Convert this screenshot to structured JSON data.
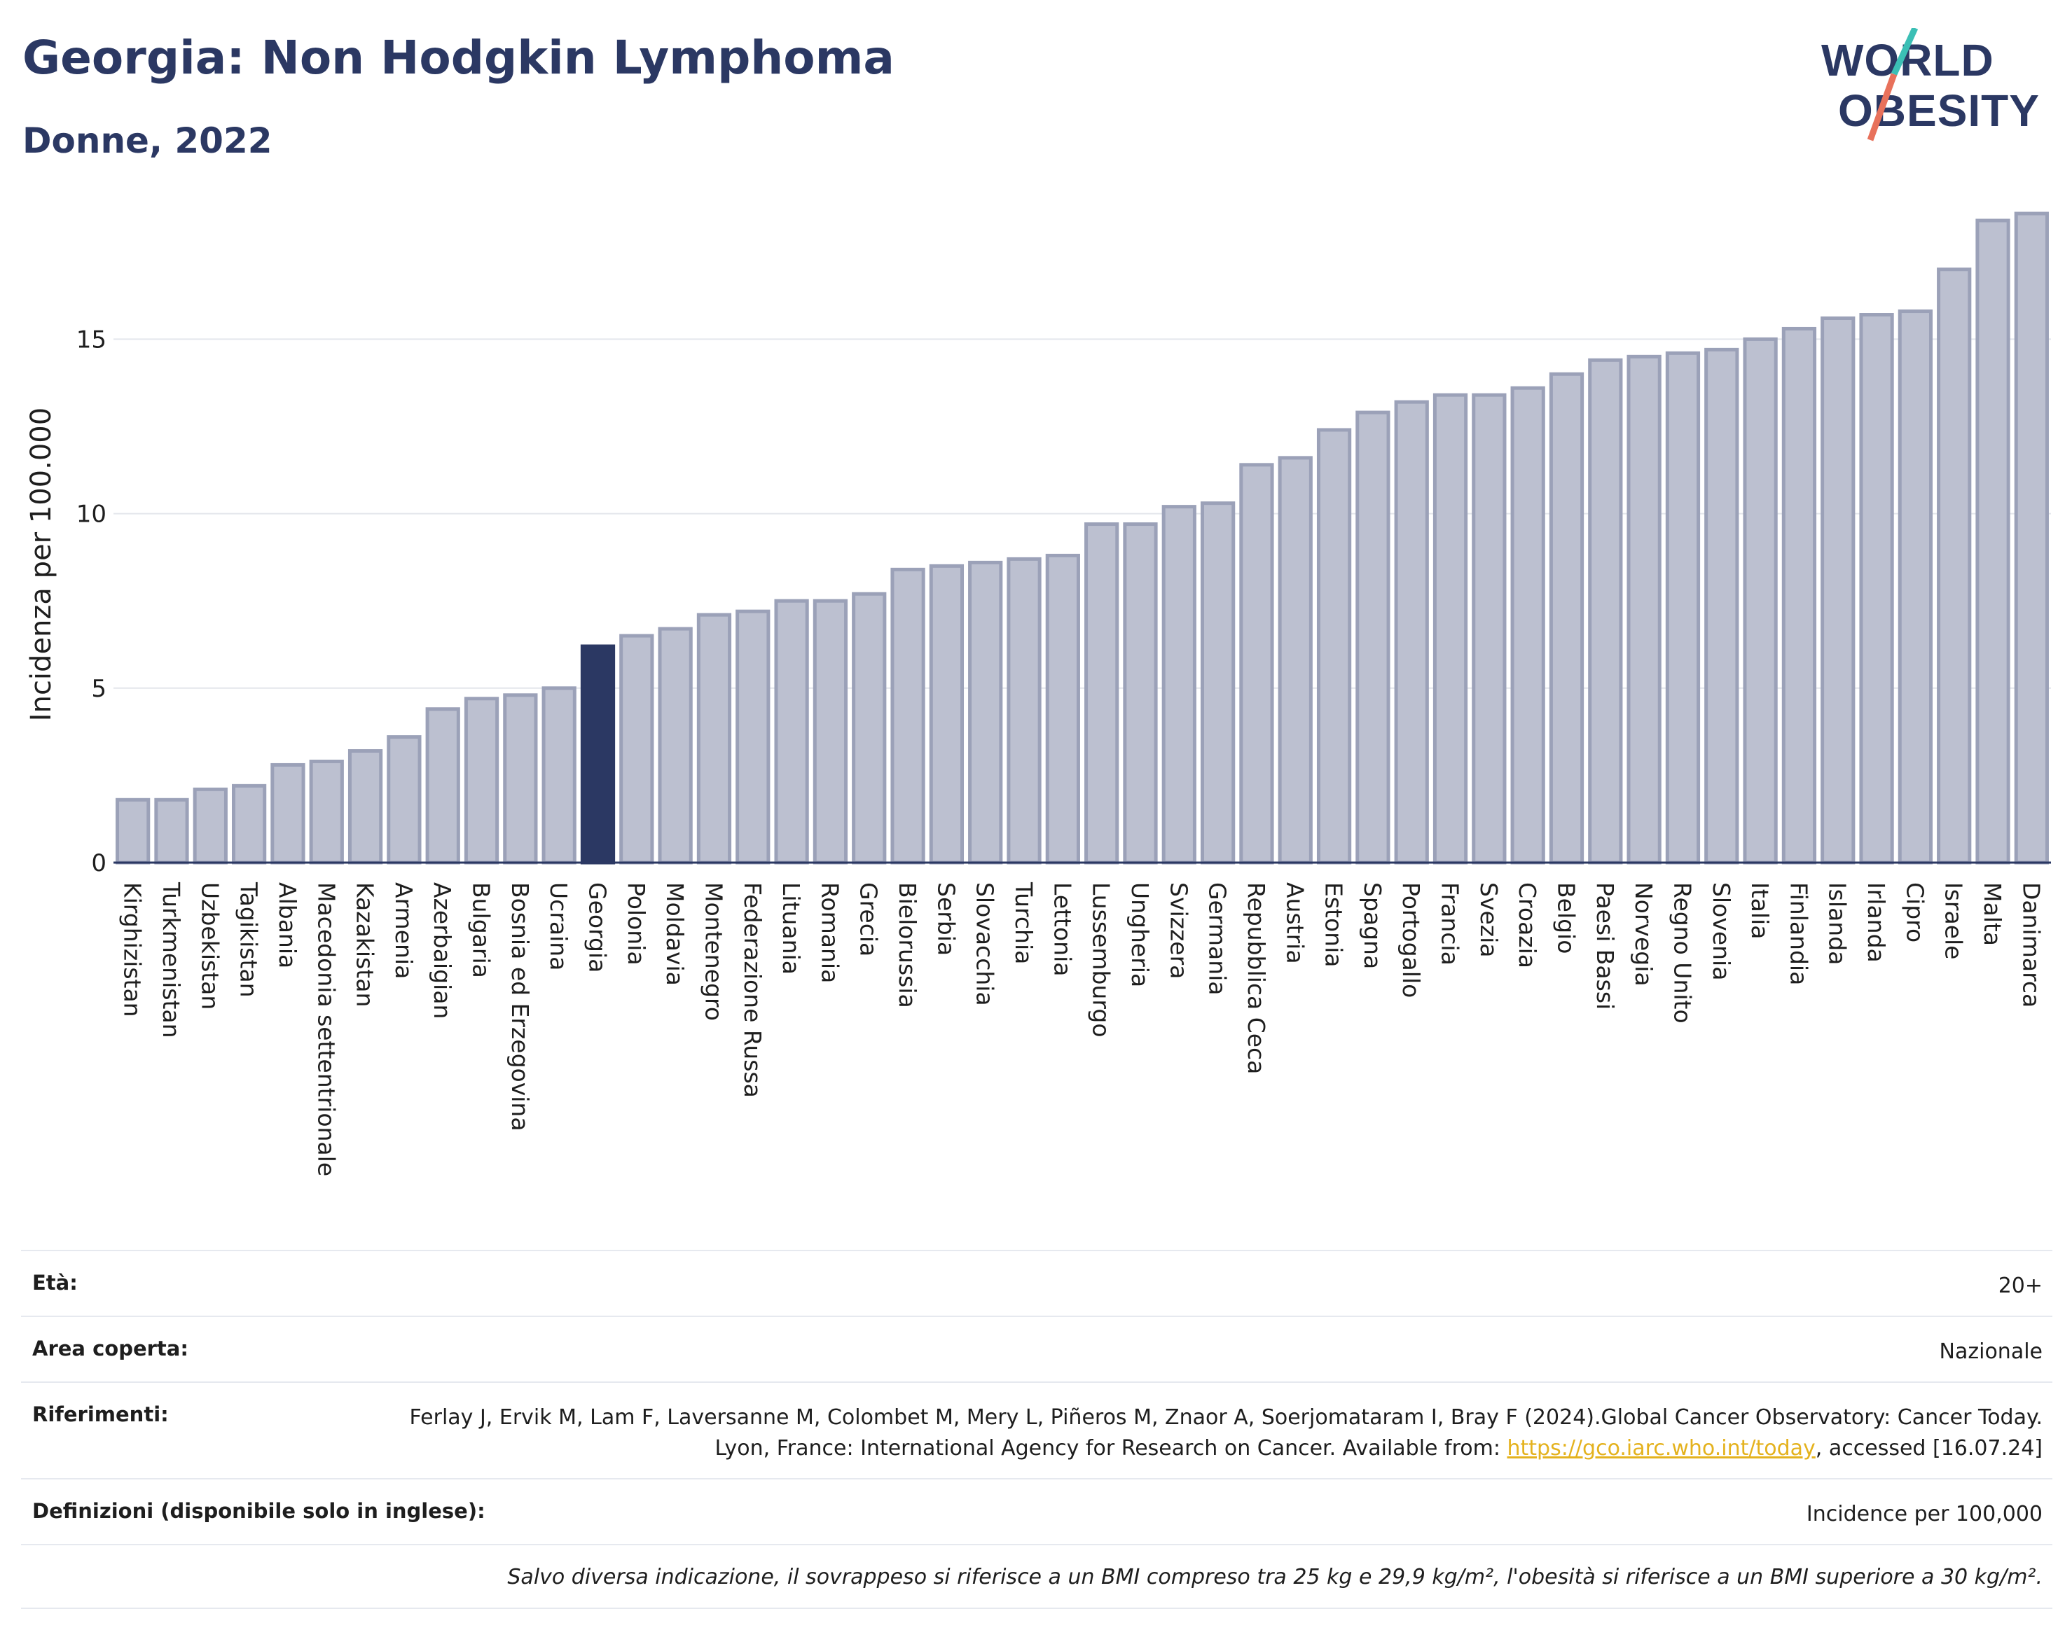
{
  "header": {
    "title": "Georgia: Non Hodgkin Lymphoma",
    "subtitle": "Donne, 2022"
  },
  "logo": {
    "line1": "WORLD",
    "line2": "OBESITY"
  },
  "colors": {
    "bar": "#bcc0d0",
    "bar_border": "#9ba1b8",
    "highlight": "#2b3863",
    "grid": "#e4e6ec",
    "axis": "#2b3863",
    "logo_text": "#2b3863",
    "logo_slash_teal": "#3bbfb5",
    "logo_slash_coral": "#e8715b"
  },
  "chart_data": {
    "type": "bar",
    "title": "Georgia: Non Hodgkin Lymphoma",
    "subtitle": "Donne, 2022",
    "ylabel": "Incidenza per 100.000",
    "xlabel": "",
    "ylim": [
      0,
      18.7
    ],
    "yticks": [
      0,
      5,
      10,
      15
    ],
    "grid": true,
    "highlight": "Georgia",
    "categories": [
      "Kirghizistan",
      "Turkmenistan",
      "Uzbekistan",
      "Tagikistan",
      "Albania",
      "Macedonia settentrionale",
      "Kazakistan",
      "Armenia",
      "Azerbaigian",
      "Bulgaria",
      "Bosnia ed Erzegovina",
      "Ucraina",
      "Georgia",
      "Polonia",
      "Moldavia",
      "Montenegro",
      "Federazione Russa",
      "Lituania",
      "Romania",
      "Grecia",
      "Bielorussia",
      "Serbia",
      "Slovacchia",
      "Turchia",
      "Lettonia",
      "Lussemburgo",
      "Ungheria",
      "Svizzera",
      "Germania",
      "Repubblica Ceca",
      "Austria",
      "Estonia",
      "Spagna",
      "Portogallo",
      "Francia",
      "Svezia",
      "Croazia",
      "Belgio",
      "Paesi Bassi",
      "Norvegia",
      "Regno Unito",
      "Slovenia",
      "Italia",
      "Finlandia",
      "Islanda",
      "Irlanda",
      "Cipro",
      "Israele",
      "Malta",
      "Danimarca"
    ],
    "values": [
      1.8,
      1.8,
      2.1,
      2.2,
      2.8,
      2.9,
      3.2,
      3.6,
      4.4,
      4.7,
      4.8,
      5.0,
      6.2,
      6.5,
      6.7,
      7.1,
      7.2,
      7.5,
      7.5,
      7.7,
      8.4,
      8.5,
      8.6,
      8.7,
      8.8,
      9.7,
      9.7,
      10.2,
      10.3,
      11.4,
      11.6,
      12.4,
      12.9,
      13.2,
      13.4,
      13.4,
      13.6,
      14.0,
      14.4,
      14.5,
      14.6,
      14.7,
      15.0,
      15.3,
      15.6,
      15.7,
      15.8,
      17.0,
      18.4,
      18.6
    ]
  },
  "meta": {
    "age_label": "Età:",
    "age_value": "20+",
    "area_label": "Area coperta:",
    "area_value": "Nazionale",
    "refs_label": "Riferimenti:",
    "refs_text": "Ferlay J, Ervik M, Lam F, Laversanne M, Colombet M, Mery L, Piñeros M, Znaor A, Soerjomataram I, Bray F (2024).Global Cancer Observatory: Cancer Today. Lyon, France: International Agency for Research on Cancer. Available from: ",
    "refs_link": "https://gco.iarc.who.int/today",
    "refs_suffix": ", accessed [16.07.24]",
    "defs_label": "Definizioni (disponibile solo in inglese):",
    "defs_value": "Incidence per 100,000",
    "note": "Salvo diversa indicazione, il sovrappeso si riferisce a un BMI compreso tra 25 kg e 29,9 kg/m², l'obesità si riferisce a un BMI superiore a 30 kg/m²."
  }
}
